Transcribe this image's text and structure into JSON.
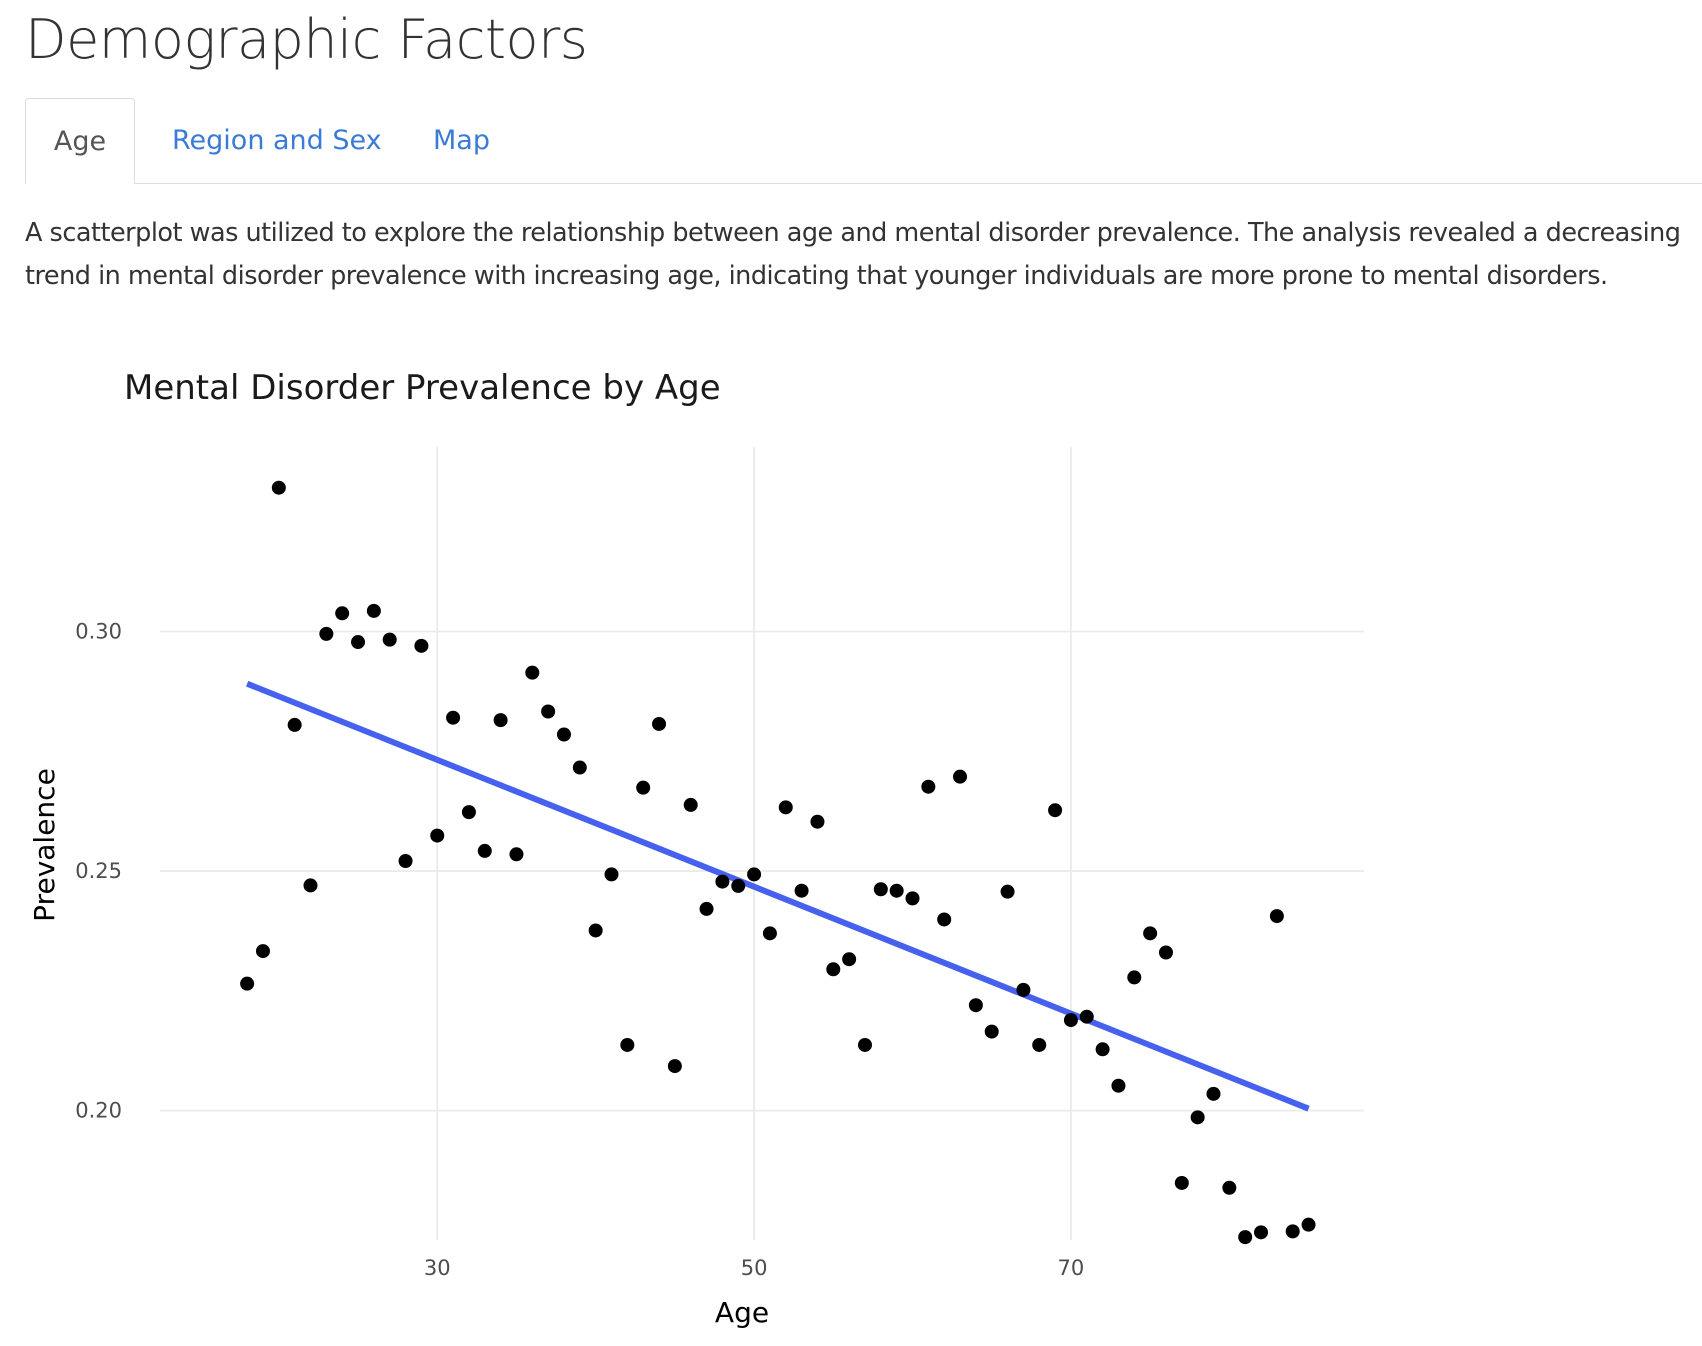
{
  "page": {
    "title": "Demographic Factors"
  },
  "tabs": [
    {
      "label": "Age",
      "active": true
    },
    {
      "label": "Region and Sex",
      "active": false
    },
    {
      "label": "Map",
      "active": false
    }
  ],
  "description": "A scatterplot was utilized to explore the relationship between age and mental disorder prevalence. The analysis revealed a decreasing trend in mental disorder prevalence with increasing age, indicating that younger individuals are more prone to mental disorders.",
  "colors": {
    "tab_link": "#3a7bd5",
    "points": "#000000",
    "trend_line": "#4661ee",
    "grid": "#ebebeb"
  },
  "chart_data": {
    "type": "scatter",
    "title": "Mental Disorder Prevalence by Age",
    "xlabel": "Age",
    "ylabel": "Prevalence",
    "xlim": [
      12.5,
      88.5
    ],
    "ylim": [
      0.173,
      0.3385
    ],
    "x_ticks": [
      30,
      50,
      70
    ],
    "y_ticks": [
      0.2,
      0.25,
      0.3
    ],
    "x_tick_labels": [
      "30",
      "50",
      "70"
    ],
    "y_tick_labels": [
      "0.20",
      "0.25",
      "0.30"
    ],
    "grid": true,
    "legend": "none",
    "points": [
      {
        "x": 18,
        "y": 0.2265
      },
      {
        "x": 19,
        "y": 0.2333
      },
      {
        "x": 20,
        "y": 0.33
      },
      {
        "x": 21,
        "y": 0.2805
      },
      {
        "x": 22,
        "y": 0.247
      },
      {
        "x": 23,
        "y": 0.2995
      },
      {
        "x": 24,
        "y": 0.3038
      },
      {
        "x": 25,
        "y": 0.2978
      },
      {
        "x": 26,
        "y": 0.3043
      },
      {
        "x": 27,
        "y": 0.2983
      },
      {
        "x": 28,
        "y": 0.2521
      },
      {
        "x": 29,
        "y": 0.297
      },
      {
        "x": 30,
        "y": 0.2574
      },
      {
        "x": 31,
        "y": 0.282
      },
      {
        "x": 32,
        "y": 0.2623
      },
      {
        "x": 33,
        "y": 0.2542
      },
      {
        "x": 34,
        "y": 0.2815
      },
      {
        "x": 35,
        "y": 0.2535
      },
      {
        "x": 36,
        "y": 0.2914
      },
      {
        "x": 37,
        "y": 0.2833
      },
      {
        "x": 38,
        "y": 0.2785
      },
      {
        "x": 39,
        "y": 0.2716
      },
      {
        "x": 40,
        "y": 0.2376
      },
      {
        "x": 41,
        "y": 0.2493
      },
      {
        "x": 42,
        "y": 0.2137
      },
      {
        "x": 43,
        "y": 0.2674
      },
      {
        "x": 44,
        "y": 0.2807
      },
      {
        "x": 45,
        "y": 0.2093
      },
      {
        "x": 46,
        "y": 0.2638
      },
      {
        "x": 47,
        "y": 0.2421
      },
      {
        "x": 48,
        "y": 0.2478
      },
      {
        "x": 49,
        "y": 0.2469
      },
      {
        "x": 50,
        "y": 0.2493
      },
      {
        "x": 51,
        "y": 0.237
      },
      {
        "x": 52,
        "y": 0.2633
      },
      {
        "x": 53,
        "y": 0.2459
      },
      {
        "x": 54,
        "y": 0.2603
      },
      {
        "x": 55,
        "y": 0.2295
      },
      {
        "x": 56,
        "y": 0.2316
      },
      {
        "x": 57,
        "y": 0.2137
      },
      {
        "x": 58,
        "y": 0.2462
      },
      {
        "x": 59,
        "y": 0.2459
      },
      {
        "x": 60,
        "y": 0.2443
      },
      {
        "x": 61,
        "y": 0.2676
      },
      {
        "x": 62,
        "y": 0.2399
      },
      {
        "x": 63,
        "y": 0.2697
      },
      {
        "x": 64,
        "y": 0.222
      },
      {
        "x": 65,
        "y": 0.2165
      },
      {
        "x": 66,
        "y": 0.2457
      },
      {
        "x": 67,
        "y": 0.2252
      },
      {
        "x": 68,
        "y": 0.2137
      },
      {
        "x": 69,
        "y": 0.2627
      },
      {
        "x": 70,
        "y": 0.2189
      },
      {
        "x": 71,
        "y": 0.2196
      },
      {
        "x": 72,
        "y": 0.2128
      },
      {
        "x": 73,
        "y": 0.2052
      },
      {
        "x": 74,
        "y": 0.2278
      },
      {
        "x": 75,
        "y": 0.237
      },
      {
        "x": 76,
        "y": 0.233
      },
      {
        "x": 77,
        "y": 0.1849
      },
      {
        "x": 78,
        "y": 0.1986
      },
      {
        "x": 79,
        "y": 0.2035
      },
      {
        "x": 80,
        "y": 0.1839
      },
      {
        "x": 81,
        "y": 0.1736
      },
      {
        "x": 82,
        "y": 0.1746
      },
      {
        "x": 83,
        "y": 0.2406
      },
      {
        "x": 84,
        "y": 0.1748
      },
      {
        "x": 85,
        "y": 0.1762
      }
    ],
    "trend_line": {
      "x": [
        18,
        85
      ],
      "y": [
        0.2891,
        0.2004
      ]
    }
  }
}
